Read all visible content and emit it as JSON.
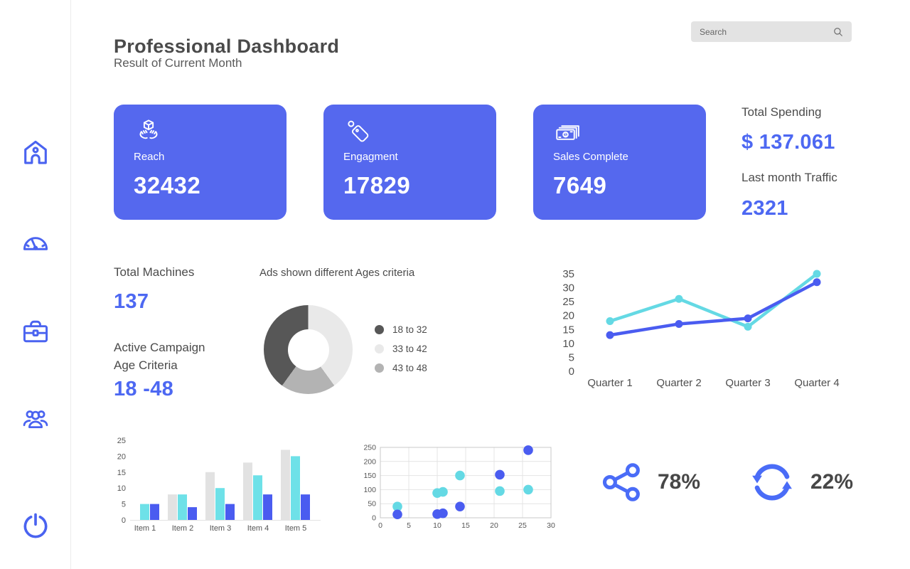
{
  "header": {
    "title": "Professional Dashboard",
    "subtitle": "Result of Current Month"
  },
  "search": {
    "placeholder": "Search",
    "icon": "search-icon"
  },
  "sidebar": {
    "icons": [
      "home-icon",
      "gauge-icon",
      "briefcase-icon",
      "users-icon",
      "power-icon"
    ]
  },
  "cards": [
    {
      "icon": "hands-box-icon",
      "label": "Reach",
      "value": "32432"
    },
    {
      "icon": "price-tag-icon",
      "label": "Engagment",
      "value": "17829"
    },
    {
      "icon": "banknotes-icon",
      "label": "Sales Complete",
      "value": "7649"
    }
  ],
  "metrics": {
    "total_spending": {
      "label": "Total Spending",
      "value": "$ 137.061"
    },
    "last_month_traffic": {
      "label": "Last month Traffic",
      "value": "2321"
    },
    "total_machines": {
      "label": "Total Machines",
      "value": "137"
    },
    "active_campaign": {
      "label_line1": "Active Campaign",
      "label_line2": "Age Criteria",
      "value": "18 -48"
    }
  },
  "stats": [
    {
      "icon": "share-icon",
      "value": "78%"
    },
    {
      "icon": "refresh-icon",
      "value": "22%"
    }
  ],
  "colors": {
    "card_blue": "#5568ee",
    "accent_blue": "#4d68f2",
    "icon_blue": "#4a63f0",
    "chart_blue": "#4a5cf0",
    "chart_cyan": "#64d9e4",
    "bar_gray": "#e2e2e2",
    "donut_dark": "#575757",
    "donut_light": "#e9e9e9",
    "donut_medium": "#b3b3b3"
  },
  "chart_data": [
    {
      "type": "pie",
      "donut": true,
      "title": "Ads shown different Ages criteria",
      "legend": [
        {
          "label": "18 to 32",
          "color": "#575757"
        },
        {
          "label": "33 to 42",
          "color": "#e9e9e9"
        },
        {
          "label": "43 to 48",
          "color": "#b3b3b3"
        }
      ],
      "segments_clockwise_from_top": [
        {
          "label": "33 to 42",
          "pct": 40,
          "color": "#e9e9e9"
        },
        {
          "label": "43 to 48",
          "pct": 20,
          "color": "#b3b3b3"
        },
        {
          "label": "18 to 32",
          "pct": 40,
          "color": "#575757"
        }
      ],
      "legend_position": "right"
    },
    {
      "type": "line",
      "categories": [
        "Quarter 1",
        "Quarter 2",
        "Quarter 3",
        "Quarter 4"
      ],
      "series": [
        {
          "name": "cyan-series",
          "color": "#64d9e4",
          "values": [
            18,
            26,
            16,
            35
          ]
        },
        {
          "name": "blue-series",
          "color": "#4a5cf0",
          "values": [
            13,
            17,
            19,
            32
          ]
        }
      ],
      "ylim": [
        0,
        35
      ],
      "yticks": [
        0,
        5,
        10,
        15,
        20,
        25,
        30,
        35
      ],
      "grid": false,
      "markers": true
    },
    {
      "type": "bar",
      "categories": [
        "Item 1",
        "Item 2",
        "Item 3",
        "Item 4",
        "Item 5"
      ],
      "series": [
        {
          "name": "gray-series",
          "color": "#e2e2e2",
          "values": [
            0,
            8,
            15,
            18,
            22
          ]
        },
        {
          "name": "cyan-series",
          "color": "#6ee1e8",
          "values": [
            5,
            8,
            10,
            14,
            20
          ]
        },
        {
          "name": "blue-series",
          "color": "#4a5cf0",
          "values": [
            5,
            4,
            5,
            8,
            8
          ]
        }
      ],
      "ylim": [
        0,
        25
      ],
      "yticks": [
        0,
        5,
        10,
        15,
        20,
        25
      ],
      "grid": false
    },
    {
      "type": "scatter",
      "xlim": [
        0,
        30
      ],
      "xticks": [
        0,
        5,
        10,
        15,
        20,
        25,
        30
      ],
      "ylim": [
        0,
        250
      ],
      "yticks": [
        0,
        50,
        100,
        150,
        200,
        250
      ],
      "series": [
        {
          "name": "cyan-series",
          "color": "#64d9e4",
          "points": [
            [
              3,
              40
            ],
            [
              10,
              88
            ],
            [
              11,
              92
            ],
            [
              14,
              150
            ],
            [
              21,
              95
            ],
            [
              26,
              100
            ]
          ]
        },
        {
          "name": "blue-series",
          "color": "#4a5cf0",
          "points": [
            [
              3,
              12
            ],
            [
              10,
              13
            ],
            [
              11,
              16
            ],
            [
              14,
              40
            ],
            [
              21,
              153
            ],
            [
              26,
              240
            ]
          ]
        }
      ],
      "grid": true
    }
  ]
}
